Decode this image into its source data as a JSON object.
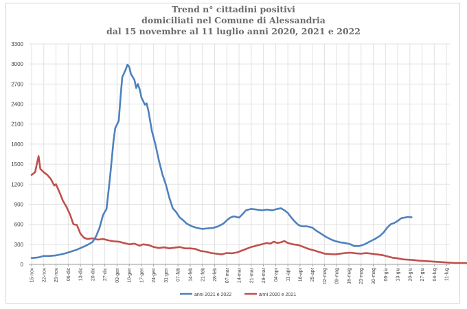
{
  "title_lines": [
    "Trend n° cittadini positivi",
    "domiciliati nel Comune di Alessandria",
    "dal 15 novembre al 11 luglio anni 2020, 2021 e 2022"
  ],
  "chart_data": {
    "type": "line",
    "title": "Trend n° cittadini positivi domiciliati nel Comune di Alessandria dal 15 novembre al 11 luglio anni 2020, 2021 e 2022",
    "ylim": [
      0,
      3300
    ],
    "yticks": [
      0,
      300,
      600,
      900,
      1200,
      1500,
      1800,
      2100,
      2400,
      2700,
      3000,
      3300
    ],
    "grid": true,
    "legend_position": "bottom",
    "x_tick_labels": [
      "15-nov",
      "22-nov",
      "29-nov",
      "06-dic",
      "13-dic",
      "20-dic",
      "27-dic",
      "03-gen",
      "10-gen",
      "17-gen",
      "24-gen",
      "31-gen",
      "07-feb",
      "14-feb",
      "21-feb",
      "28-feb",
      "07-mar",
      "14-mar",
      "21-mar",
      "28-mar",
      "04-apr",
      "11-apr",
      "18-apr",
      "25-apr",
      "02-mag",
      "09-mag",
      "16-mag",
      "23-mag",
      "30-mag",
      "06-giu",
      "13-giu",
      "20-giu",
      "27-giu",
      "04-lug",
      "11-lug"
    ],
    "x_unit": "days since 15-nov",
    "series": [
      {
        "name": "anni 2021 e 2022",
        "color": "#4f81bd",
        "points": [
          [
            0,
            95
          ],
          [
            4,
            105
          ],
          [
            7,
            125
          ],
          [
            10,
            125
          ],
          [
            14,
            135
          ],
          [
            17,
            150
          ],
          [
            20,
            170
          ],
          [
            23,
            195
          ],
          [
            26,
            220
          ],
          [
            29,
            255
          ],
          [
            32,
            290
          ],
          [
            35,
            335
          ],
          [
            37,
            420
          ],
          [
            39,
            550
          ],
          [
            41,
            740
          ],
          [
            43,
            830
          ],
          [
            45,
            1300
          ],
          [
            47,
            1850
          ],
          [
            48,
            2040
          ],
          [
            50,
            2150
          ],
          [
            51,
            2500
          ],
          [
            52,
            2800
          ],
          [
            54,
            2920
          ],
          [
            55,
            2990
          ],
          [
            56,
            2960
          ],
          [
            57,
            2850
          ],
          [
            59,
            2760
          ],
          [
            60,
            2640
          ],
          [
            61,
            2700
          ],
          [
            62,
            2620
          ],
          [
            63,
            2500
          ],
          [
            65,
            2390
          ],
          [
            66,
            2410
          ],
          [
            67,
            2300
          ],
          [
            69,
            2000
          ],
          [
            71,
            1800
          ],
          [
            73,
            1560
          ],
          [
            75,
            1350
          ],
          [
            77,
            1200
          ],
          [
            79,
            1000
          ],
          [
            81,
            840
          ],
          [
            83,
            780
          ],
          [
            85,
            700
          ],
          [
            87,
            660
          ],
          [
            89,
            610
          ],
          [
            92,
            570
          ],
          [
            95,
            545
          ],
          [
            98,
            530
          ],
          [
            101,
            540
          ],
          [
            104,
            545
          ],
          [
            107,
            570
          ],
          [
            110,
            610
          ],
          [
            112,
            660
          ],
          [
            114,
            700
          ],
          [
            116,
            720
          ],
          [
            119,
            700
          ],
          [
            121,
            750
          ],
          [
            123,
            810
          ],
          [
            126,
            830
          ],
          [
            129,
            820
          ],
          [
            132,
            810
          ],
          [
            135,
            820
          ],
          [
            138,
            810
          ],
          [
            141,
            830
          ],
          [
            143,
            840
          ],
          [
            145,
            810
          ],
          [
            147,
            770
          ],
          [
            149,
            700
          ],
          [
            151,
            640
          ],
          [
            153,
            590
          ],
          [
            155,
            570
          ],
          [
            158,
            570
          ],
          [
            161,
            550
          ],
          [
            163,
            510
          ],
          [
            166,
            460
          ],
          [
            169,
            410
          ],
          [
            172,
            370
          ],
          [
            174,
            350
          ],
          [
            177,
            330
          ],
          [
            180,
            320
          ],
          [
            183,
            300
          ],
          [
            185,
            275
          ],
          [
            188,
            275
          ],
          [
            191,
            300
          ],
          [
            194,
            340
          ],
          [
            197,
            380
          ],
          [
            200,
            430
          ],
          [
            202,
            480
          ],
          [
            204,
            550
          ],
          [
            206,
            600
          ],
          [
            208,
            620
          ],
          [
            210,
            650
          ],
          [
            212,
            690
          ],
          [
            214,
            700
          ],
          [
            216,
            710
          ],
          [
            218,
            705
          ]
        ]
      },
      {
        "name": "anni 2020 e 2021",
        "color": "#c0504d",
        "points": [
          [
            0,
            1340
          ],
          [
            2,
            1380
          ],
          [
            3,
            1500
          ],
          [
            4,
            1620
          ],
          [
            5,
            1430
          ],
          [
            7,
            1380
          ],
          [
            9,
            1340
          ],
          [
            11,
            1280
          ],
          [
            13,
            1180
          ],
          [
            14,
            1200
          ],
          [
            16,
            1080
          ],
          [
            18,
            950
          ],
          [
            20,
            860
          ],
          [
            22,
            750
          ],
          [
            24,
            600
          ],
          [
            26,
            590
          ],
          [
            28,
            460
          ],
          [
            30,
            400
          ],
          [
            32,
            380
          ],
          [
            35,
            390
          ],
          [
            38,
            370
          ],
          [
            41,
            380
          ],
          [
            44,
            360
          ],
          [
            47,
            345
          ],
          [
            50,
            340
          ],
          [
            53,
            320
          ],
          [
            56,
            300
          ],
          [
            59,
            310
          ],
          [
            62,
            280
          ],
          [
            64,
            300
          ],
          [
            67,
            290
          ],
          [
            70,
            260
          ],
          [
            73,
            245
          ],
          [
            76,
            255
          ],
          [
            79,
            240
          ],
          [
            82,
            250
          ],
          [
            85,
            260
          ],
          [
            88,
            240
          ],
          [
            91,
            240
          ],
          [
            94,
            230
          ],
          [
            97,
            200
          ],
          [
            100,
            190
          ],
          [
            103,
            170
          ],
          [
            106,
            160
          ],
          [
            109,
            150
          ],
          [
            112,
            170
          ],
          [
            115,
            165
          ],
          [
            118,
            180
          ],
          [
            120,
            200
          ],
          [
            123,
            230
          ],
          [
            126,
            260
          ],
          [
            129,
            280
          ],
          [
            132,
            300
          ],
          [
            135,
            320
          ],
          [
            137,
            310
          ],
          [
            139,
            340
          ],
          [
            141,
            320
          ],
          [
            143,
            330
          ],
          [
            145,
            350
          ],
          [
            147,
            320
          ],
          [
            150,
            300
          ],
          [
            153,
            290
          ],
          [
            156,
            260
          ],
          [
            159,
            230
          ],
          [
            162,
            210
          ],
          [
            165,
            185
          ],
          [
            168,
            160
          ],
          [
            171,
            155
          ],
          [
            174,
            150
          ],
          [
            177,
            160
          ],
          [
            180,
            170
          ],
          [
            183,
            175
          ],
          [
            186,
            165
          ],
          [
            189,
            160
          ],
          [
            192,
            170
          ],
          [
            195,
            160
          ],
          [
            198,
            150
          ],
          [
            201,
            140
          ],
          [
            204,
            120
          ],
          [
            207,
            100
          ],
          [
            210,
            90
          ],
          [
            213,
            75
          ],
          [
            216,
            70
          ],
          [
            219,
            65
          ],
          [
            222,
            55
          ],
          [
            225,
            50
          ],
          [
            228,
            45
          ],
          [
            231,
            40
          ],
          [
            234,
            35
          ],
          [
            237,
            30
          ],
          [
            240,
            25
          ],
          [
            243,
            20
          ],
          [
            246,
            20
          ],
          [
            249,
            20
          ],
          [
            252,
            18
          ],
          [
            255,
            15
          ],
          [
            258,
            15
          ]
        ]
      }
    ]
  }
}
